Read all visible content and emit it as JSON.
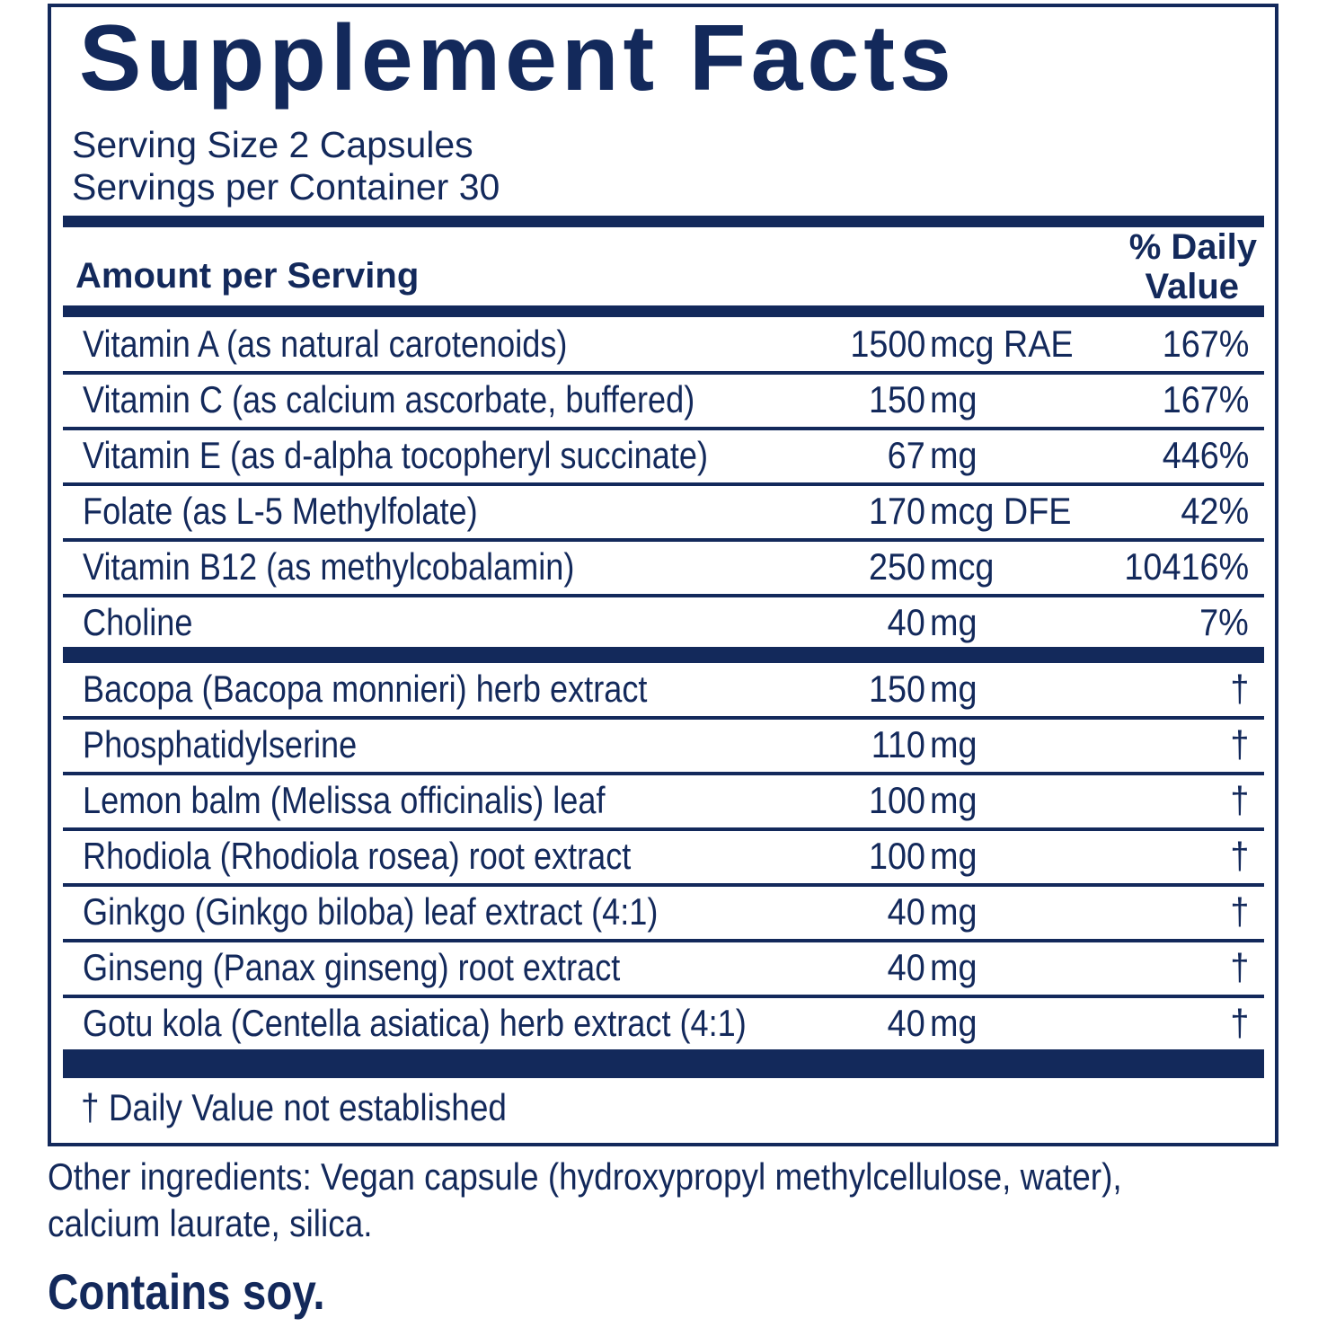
{
  "title": "Supplement Facts",
  "serving_size": "Serving Size 2 Capsules",
  "servings_per_container": "Servings per Container 30",
  "header": {
    "amount": "Amount per Serving",
    "dv_line1": "% Daily",
    "dv_line2": "Value"
  },
  "vitamins": [
    {
      "name": "Vitamin A (as natural carotenoids)",
      "amount": "1500",
      "unit": "mcg RAE",
      "dv": "167%"
    },
    {
      "name": "Vitamin C (as calcium ascorbate, buffered)",
      "amount": "150",
      "unit": "mg",
      "dv": "167%"
    },
    {
      "name": "Vitamin E (as d-alpha tocopheryl succinate)",
      "amount": "67",
      "unit": "mg",
      "dv": "446%"
    },
    {
      "name": "Folate (as L-5 Methylfolate)",
      "amount": "170",
      "unit": "mcg DFE",
      "dv": "42%"
    },
    {
      "name": "Vitamin B12 (as methylcobalamin)",
      "amount": "250",
      "unit": "mcg",
      "dv": "10416%"
    },
    {
      "name": "Choline",
      "amount": "40",
      "unit": "mg",
      "dv": "7%"
    }
  ],
  "botanicals": [
    {
      "name": "Bacopa (Bacopa monnieri) herb extract",
      "amount": "150",
      "unit": "mg",
      "dv": "†"
    },
    {
      "name": "Phosphatidylserine",
      "amount": "110",
      "unit": "mg",
      "dv": "†"
    },
    {
      "name": "Lemon balm (Melissa officinalis) leaf",
      "amount": "100",
      "unit": "mg",
      "dv": "†"
    },
    {
      "name": "Rhodiola (Rhodiola rosea) root extract",
      "amount": "100",
      "unit": "mg",
      "dv": "†"
    },
    {
      "name": "Ginkgo (Ginkgo biloba) leaf extract (4:1)",
      "amount": "40",
      "unit": "mg",
      "dv": "†"
    },
    {
      "name": "Ginseng (Panax ginseng) root extract",
      "amount": "40",
      "unit": "mg",
      "dv": "†"
    },
    {
      "name": "Gotu kola (Centella asiatica) herb extract (4:1)",
      "amount": "40",
      "unit": "mg",
      "dv": "†"
    }
  ],
  "footnote": "† Daily Value not established",
  "other_ingredients": [
    "Other ingredients: Vegan capsule (hydroxypropyl methylcellulose, water),",
    "calcium laurate, silica."
  ],
  "allergen": "Contains soy.",
  "colors": {
    "navy": "#13295b"
  }
}
